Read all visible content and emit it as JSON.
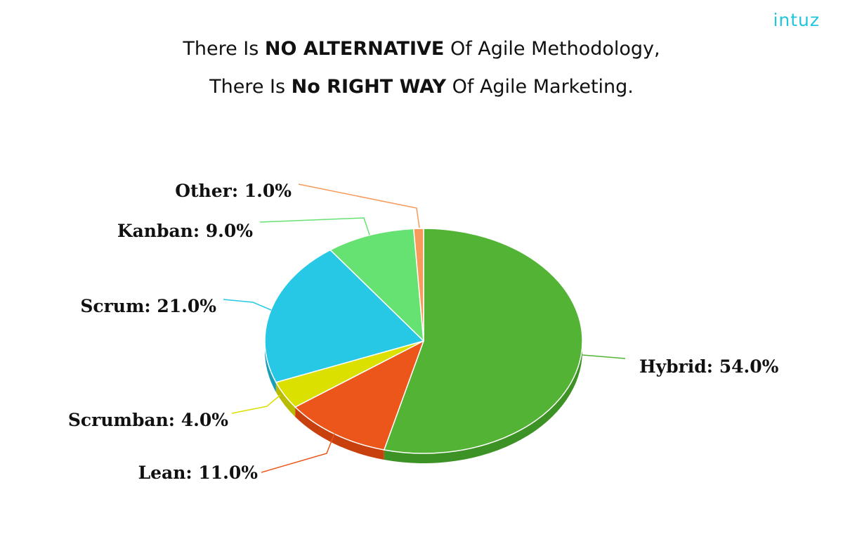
{
  "brand": {
    "logo_text": "intuz"
  },
  "headline": {
    "line1": {
      "pre": "There Is ",
      "bold": "NO ALTERNATIVE",
      "post": " Of Agile Methodology,"
    },
    "line2": {
      "pre": "There Is ",
      "bold": "No RIGHT WAY",
      "post": " Of Agile Marketing."
    }
  },
  "chart_data": {
    "type": "pie",
    "start_angle_deg": 0,
    "direction": "clockwise",
    "three_d": true,
    "slices": [
      {
        "label": "Hybrid",
        "value": 54.0,
        "display": "Hybrid: 54.0%",
        "color": "#52b334",
        "side_color": "#3d9226"
      },
      {
        "label": "Lean",
        "value": 11.0,
        "display": "Lean: 11.0%",
        "color": "#ec561b",
        "side_color": "#c8400e"
      },
      {
        "label": "Scrumban",
        "value": 4.0,
        "display": "Scrumban: 4.0%",
        "color": "#dce000",
        "side_color": "#b8bb00"
      },
      {
        "label": "Scrum",
        "value": 21.0,
        "display": "Scrum: 21.0%",
        "color": "#26c8e5",
        "side_color": "#1a9fb8"
      },
      {
        "label": "Kanban",
        "value": 9.0,
        "display": "Kanban: 9.0%",
        "color": "#66e272",
        "side_color": "#48bf56"
      },
      {
        "label": "Other",
        "value": 1.0,
        "display": "Other: 1.0%",
        "color": "#f79a5b",
        "side_color": "#d9783a"
      }
    ]
  }
}
